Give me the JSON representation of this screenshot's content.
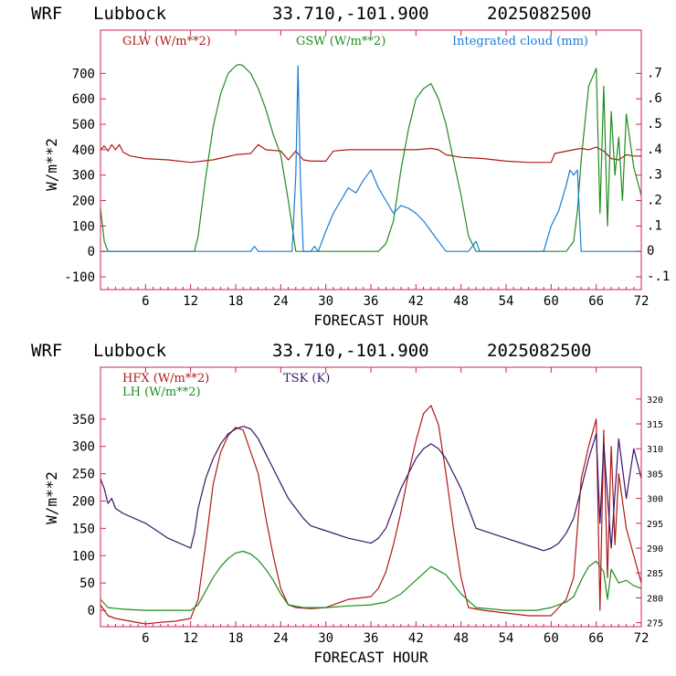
{
  "header": {
    "model": "WRF",
    "site": "Lubbock",
    "coords": "33.710,-101.900",
    "run": "2025082500"
  },
  "colors": {
    "red": "#b01818",
    "green": "#1e8c1e",
    "blue": "#1a7ad6",
    "purple": "#3c1466",
    "axis": "#cc2255"
  },
  "chart_data": [
    {
      "type": "line",
      "x_label": "FORECAST HOUR",
      "y_label": "W/m**2",
      "xlim": [
        0,
        72
      ],
      "ylim": [
        -150,
        870
      ],
      "y2lim": [
        -0.15,
        0.87
      ],
      "x_ticks": [
        "6",
        "12",
        "18",
        "24",
        "30",
        "36",
        "42",
        "48",
        "54",
        "60",
        "66",
        "72"
      ],
      "y_ticks": [
        "-100",
        "0",
        "100",
        "200",
        "300",
        "400",
        "500",
        "600",
        "700"
      ],
      "y2_ticks": [
        "-.1",
        "0",
        ".1",
        ".2",
        ".3",
        ".4",
        ".5",
        ".6",
        ".7"
      ],
      "series": [
        {
          "name": "GLW (W/m**2)",
          "color": "red",
          "axis": "left",
          "x": [
            0,
            0.5,
            1,
            1.5,
            2,
            2.5,
            3,
            4,
            6,
            9,
            12,
            15,
            18,
            20,
            21,
            22,
            24,
            25,
            26,
            27,
            28,
            30,
            31,
            33,
            36,
            39,
            42,
            44,
            45,
            46,
            48,
            51,
            54,
            57,
            60,
            60.5,
            63,
            64,
            65,
            66,
            67,
            68,
            69,
            70,
            71,
            72
          ],
          "y": [
            400,
            415,
            395,
            420,
            400,
            420,
            390,
            375,
            365,
            360,
            350,
            360,
            380,
            385,
            420,
            400,
            395,
            360,
            395,
            360,
            355,
            355,
            395,
            400,
            400,
            400,
            400,
            405,
            400,
            380,
            370,
            365,
            355,
            350,
            350,
            385,
            400,
            405,
            400,
            410,
            395,
            365,
            360,
            380,
            375,
            375
          ]
        },
        {
          "name": "GSW (W/m**2)",
          "color": "green",
          "axis": "left",
          "x": [
            0,
            0.5,
            1,
            12.5,
            13,
            14,
            15,
            16,
            17,
            18,
            18.5,
            19,
            20,
            21,
            22,
            23,
            23.5,
            24,
            25,
            26,
            37,
            38,
            39,
            40,
            41,
            42,
            43,
            44,
            45,
            46,
            47,
            48,
            49,
            50,
            62,
            63,
            63.5,
            64,
            65,
            66,
            66.5,
            67,
            67.5,
            68,
            68.5,
            69,
            69.5,
            70,
            71,
            72
          ],
          "y": [
            170,
            40,
            0,
            0,
            60,
            290,
            490,
            620,
            700,
            730,
            735,
            730,
            700,
            640,
            560,
            460,
            420,
            380,
            200,
            0,
            0,
            30,
            120,
            320,
            480,
            600,
            640,
            660,
            600,
            500,
            360,
            220,
            60,
            0,
            0,
            40,
            160,
            360,
            650,
            720,
            150,
            650,
            100,
            550,
            300,
            450,
            200,
            540,
            330,
            220
          ]
        },
        {
          "name": "Integrated cloud (mm)",
          "color": "blue",
          "axis": "right",
          "x": [
            0,
            20,
            20.5,
            21,
            25.5,
            26,
            26.3,
            26.6,
            27,
            28,
            28.5,
            29,
            30,
            31,
            32,
            33,
            34,
            35,
            35.5,
            36,
            37,
            38,
            39,
            40,
            41,
            42,
            43,
            44,
            45,
            46,
            47,
            49,
            50,
            50.5,
            59,
            60,
            61,
            62,
            62.5,
            63,
            63.5,
            64,
            72
          ],
          "y": [
            0,
            0,
            0.02,
            0,
            0,
            0.3,
            0.73,
            0.3,
            0,
            0,
            0.02,
            0,
            0.08,
            0.15,
            0.2,
            0.25,
            0.23,
            0.28,
            0.3,
            0.32,
            0.25,
            0.2,
            0.15,
            0.18,
            0.17,
            0.15,
            0.12,
            0.08,
            0.04,
            0,
            0,
            0,
            0.04,
            0,
            0,
            0.1,
            0.16,
            0.26,
            0.32,
            0.3,
            0.32,
            0,
            0
          ]
        }
      ]
    },
    {
      "type": "line",
      "x_label": "FORECAST HOUR",
      "y_label": "W/m**2",
      "xlim": [
        0,
        72
      ],
      "ylim": [
        -30,
        445
      ],
      "y2lim": [
        274.2,
        326.4
      ],
      "x_ticks": [
        "6",
        "12",
        "18",
        "24",
        "30",
        "36",
        "42",
        "48",
        "54",
        "60",
        "66",
        "72"
      ],
      "y_ticks": [
        "0",
        "50",
        "100",
        "150",
        "200",
        "250",
        "300",
        "350"
      ],
      "y2_ticks": [
        "275",
        "280",
        "285",
        "290",
        "295",
        "300",
        "305",
        "310",
        "315",
        "320"
      ],
      "series": [
        {
          "name": "HFX (W/m**2)",
          "color": "red",
          "axis": "left",
          "x": [
            0,
            1,
            2,
            4,
            6,
            8,
            10,
            12,
            13,
            14,
            15,
            16,
            17,
            18,
            19,
            20,
            21,
            22,
            23,
            24,
            25,
            26,
            28,
            30,
            33,
            36,
            37,
            38,
            39,
            40,
            41,
            42,
            43,
            44,
            45,
            46,
            47,
            48,
            49,
            51,
            54,
            57,
            60,
            61,
            62,
            63,
            64,
            65,
            66,
            66.5,
            67,
            67.5,
            68,
            68.5,
            69,
            69.5,
            70,
            71,
            72
          ],
          "y": [
            10,
            -10,
            -15,
            -20,
            -25,
            -22,
            -20,
            -15,
            20,
            120,
            230,
            290,
            320,
            335,
            330,
            290,
            250,
            170,
            100,
            40,
            10,
            5,
            3,
            5,
            20,
            25,
            40,
            70,
            120,
            180,
            250,
            310,
            360,
            375,
            340,
            250,
            150,
            60,
            5,
            0,
            -5,
            -10,
            -10,
            5,
            20,
            60,
            240,
            300,
            350,
            0,
            330,
            60,
            300,
            120,
            250,
            200,
            150,
            100,
            50
          ]
        },
        {
          "name": "LH (W/m**2)",
          "color": "green",
          "axis": "left",
          "x": [
            0,
            1,
            3,
            6,
            9,
            12,
            13,
            14,
            15,
            16,
            17,
            18,
            19,
            20,
            21,
            22,
            23,
            24,
            25,
            27,
            30,
            33,
            36,
            38,
            40,
            42,
            44,
            46,
            48,
            50,
            54,
            58,
            60,
            62,
            63,
            64,
            65,
            66,
            67,
            67.5,
            68,
            69,
            70,
            71,
            72
          ],
          "y": [
            20,
            5,
            2,
            0,
            0,
            0,
            10,
            35,
            60,
            80,
            95,
            105,
            108,
            103,
            92,
            75,
            55,
            30,
            10,
            5,
            5,
            8,
            10,
            15,
            30,
            55,
            80,
            65,
            30,
            5,
            0,
            0,
            5,
            15,
            25,
            55,
            80,
            90,
            70,
            20,
            75,
            50,
            55,
            45,
            40
          ]
        },
        {
          "name": "TSK (K)",
          "color": "purple",
          "axis": "right",
          "x": [
            0,
            0.5,
            1,
            1.5,
            2,
            3,
            6,
            9,
            12,
            12.5,
            13,
            14,
            15,
            16,
            17,
            18,
            19,
            20,
            21,
            22,
            23,
            24,
            25,
            26,
            27,
            28,
            30,
            33,
            36,
            37,
            38,
            39,
            40,
            41,
            42,
            43,
            44,
            45,
            46,
            47,
            48,
            49,
            50,
            54,
            58,
            59,
            60,
            61,
            62,
            63,
            64,
            65,
            66,
            66.5,
            67,
            68,
            69,
            70,
            71,
            72
          ],
          "y": [
            304,
            302,
            299,
            300,
            298,
            297,
            295,
            292,
            290,
            293,
            298,
            304,
            308,
            311,
            313,
            314,
            314.5,
            314,
            312,
            309,
            306,
            303,
            300,
            298,
            296,
            294.5,
            293.5,
            292,
            291,
            292,
            294,
            298,
            302,
            305,
            308,
            310,
            311,
            310,
            308,
            305,
            302,
            298,
            294,
            292,
            290,
            289.5,
            290,
            291,
            293,
            296,
            302,
            308,
            313,
            295,
            311,
            290,
            312,
            300,
            310,
            304
          ]
        }
      ]
    }
  ],
  "plots": [
    {
      "legend": [
        {
          "label": "GLW (W/m**2)",
          "color": "red"
        },
        {
          "label": "GSW (W/m**2)",
          "color": "green"
        },
        {
          "label": "Integrated cloud (mm)",
          "color": "blue"
        }
      ]
    },
    {
      "legend": [
        {
          "label": "HFX (W/m**2)",
          "color": "red"
        },
        {
          "label": "LH  (W/m**2)",
          "color": "green"
        },
        {
          "label": "TSK (K)",
          "color": "purple"
        }
      ]
    }
  ]
}
